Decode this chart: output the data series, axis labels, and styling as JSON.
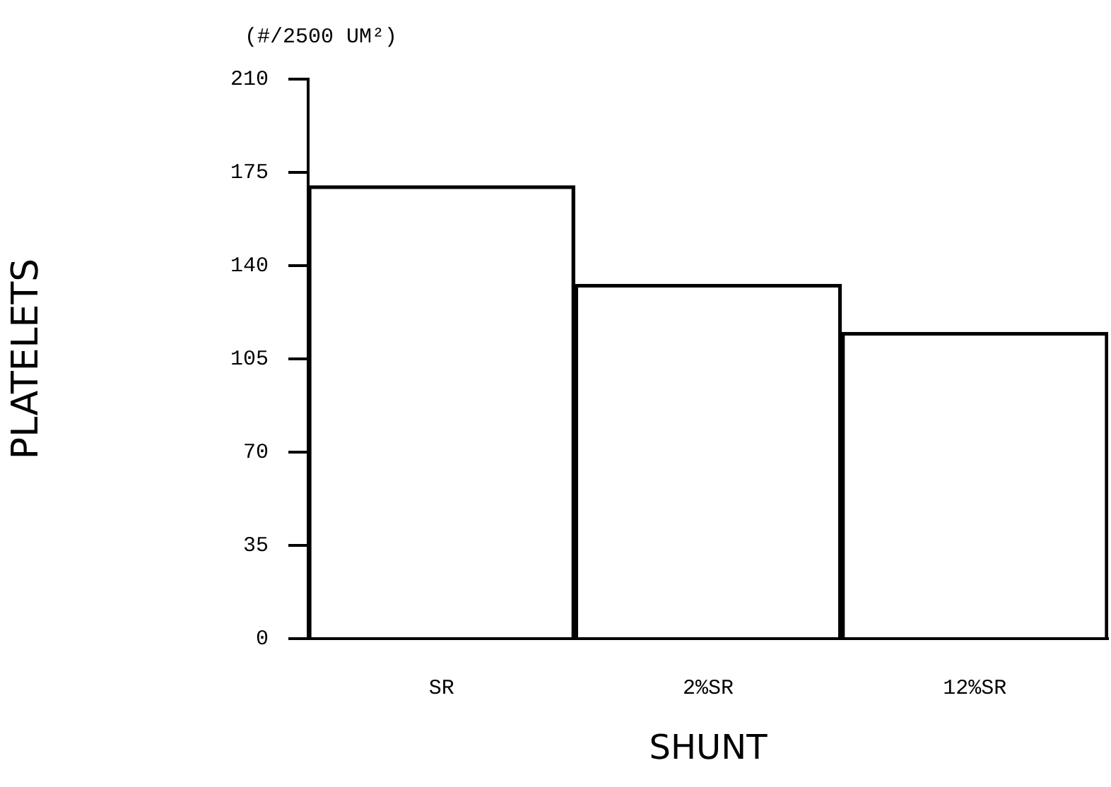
{
  "chart_data": {
    "type": "bar",
    "ylabel": "PLATELETS",
    "xlabel": "SHUNT",
    "annotations": [
      "(#/2500 UM²)"
    ],
    "categories": [
      "SR",
      "2%SR",
      "12%SR"
    ],
    "values": [
      170,
      133,
      115
    ],
    "color": "#000000",
    "ylim": [
      0,
      210
    ],
    "yticks": [
      0,
      35,
      70,
      105,
      140,
      175,
      210
    ],
    "grid": false,
    "legend": false
  }
}
